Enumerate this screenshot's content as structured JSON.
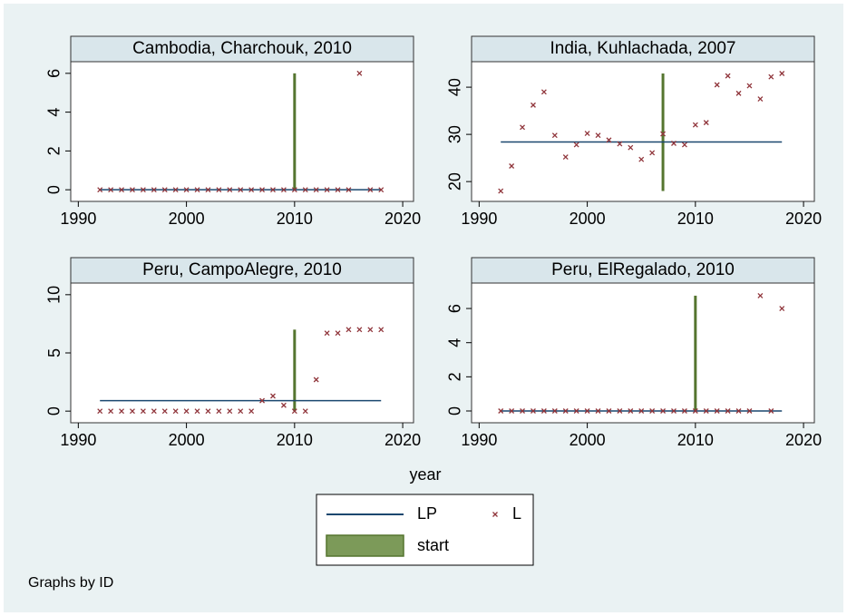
{
  "chart_data": [
    {
      "type": "scatter",
      "title": "Cambodia, Charchouk, 2010",
      "xlim": [
        1989.3,
        2021.0
      ],
      "xticks": [
        1990,
        2000,
        2010,
        2020
      ],
      "ylim": [
        -0.6,
        6.6
      ],
      "yticks": [
        0,
        2,
        4,
        6
      ],
      "x": [
        1992,
        1993,
        1994,
        1995,
        1996,
        1997,
        1998,
        1999,
        2000,
        2001,
        2002,
        2003,
        2004,
        2005,
        2006,
        2007,
        2008,
        2009,
        2010,
        2011,
        2012,
        2013,
        2014,
        2015,
        2016,
        2017,
        2018
      ],
      "lp": [
        0,
        0,
        0,
        0,
        0,
        0,
        0,
        0,
        0,
        0,
        0,
        0,
        0,
        0,
        0,
        0,
        0,
        0,
        0,
        0,
        0,
        0,
        0,
        0,
        0,
        0,
        0
      ],
      "l": [
        0,
        0,
        0,
        0,
        0,
        0,
        0,
        0,
        0,
        0,
        0,
        0,
        0,
        0,
        0,
        0,
        0,
        0,
        0,
        0,
        0,
        0,
        0,
        0,
        6,
        0,
        0
      ],
      "start": {
        "x": 2010,
        "low": 0,
        "high": 6
      }
    },
    {
      "type": "scatter",
      "title": "India, Kuhlachada, 2007",
      "xlim": [
        1989.3,
        2021.0
      ],
      "xticks": [
        1990,
        2000,
        2010,
        2020
      ],
      "ylim": [
        15.8,
        45.4
      ],
      "yticks": [
        20,
        30,
        40
      ],
      "x": [
        1992,
        1993,
        1994,
        1995,
        1996,
        1997,
        1998,
        1999,
        2000,
        2001,
        2002,
        2003,
        2004,
        2005,
        2006,
        2007,
        2008,
        2009,
        2010,
        2011,
        2012,
        2013,
        2014,
        2015,
        2016,
        2017,
        2018
      ],
      "lp": [
        28.4,
        28.4,
        28.4,
        28.4,
        28.4,
        28.4,
        28.4,
        28.4,
        28.4,
        28.4,
        28.4,
        28.4,
        28.4,
        28.4,
        28.4,
        28.4,
        28.4,
        28.4,
        28.4,
        28.4,
        28.4,
        28.4,
        28.4,
        28.4,
        28.4,
        28.4,
        28.4
      ],
      "l": [
        18,
        23.3,
        31.5,
        36.2,
        39,
        29.8,
        25.2,
        27.8,
        30.2,
        29.8,
        28.8,
        28,
        27.2,
        24.7,
        26.1,
        30.1,
        28.1,
        27.8,
        32,
        32.5,
        40.5,
        42.4,
        38.7,
        40.3,
        37.5,
        42.2,
        42.9
      ],
      "start": {
        "x": 2007,
        "low": 18,
        "high": 42.9
      }
    },
    {
      "type": "scatter",
      "title": "Peru, CampoAlegre, 2010",
      "xlim": [
        1989.3,
        2021.0
      ],
      "xticks": [
        1990,
        2000,
        2010,
        2020
      ],
      "ylim": [
        -1.0,
        11.0
      ],
      "yticks": [
        0,
        5,
        10
      ],
      "x": [
        1992,
        1993,
        1994,
        1995,
        1996,
        1997,
        1998,
        1999,
        2000,
        2001,
        2002,
        2003,
        2004,
        2005,
        2006,
        2007,
        2008,
        2009,
        2010,
        2011,
        2012,
        2013,
        2014,
        2015,
        2016,
        2017,
        2018
      ],
      "lp": [
        0.9,
        0.9,
        0.9,
        0.9,
        0.9,
        0.9,
        0.9,
        0.9,
        0.9,
        0.9,
        0.9,
        0.9,
        0.9,
        0.9,
        0.9,
        0.9,
        0.9,
        0.9,
        0.9,
        0.9,
        0.9,
        0.9,
        0.9,
        0.9,
        0.9,
        0.9,
        0.9
      ],
      "l": [
        0,
        0,
        0,
        0,
        0,
        0,
        0,
        0,
        0,
        0,
        0,
        0,
        0,
        0,
        0,
        0.9,
        1.3,
        0.5,
        0,
        0,
        2.7,
        6.7,
        6.7,
        7,
        7,
        7,
        7
      ],
      "start": {
        "x": 2010,
        "low": 0,
        "high": 7
      }
    },
    {
      "type": "scatter",
      "title": "Peru, ElRegalado, 2010",
      "xlim": [
        1989.3,
        2021.0
      ],
      "xticks": [
        1990,
        2000,
        2010,
        2020
      ],
      "ylim": [
        -0.69,
        7.49
      ],
      "yticks": [
        0,
        2,
        4,
        6
      ],
      "x": [
        1992,
        1993,
        1994,
        1995,
        1996,
        1997,
        1998,
        1999,
        2000,
        2001,
        2002,
        2003,
        2004,
        2005,
        2006,
        2007,
        2008,
        2009,
        2010,
        2011,
        2012,
        2013,
        2014,
        2015,
        2016,
        2017,
        2018
      ],
      "lp": [
        0,
        0,
        0,
        0,
        0,
        0,
        0,
        0,
        0,
        0,
        0,
        0,
        0,
        0,
        0,
        0,
        0,
        0,
        0,
        0,
        0,
        0,
        0,
        0,
        0,
        0,
        0
      ],
      "l": [
        0,
        0,
        0,
        0,
        0,
        0,
        0,
        0,
        0,
        0,
        0,
        0,
        0,
        0,
        0,
        0,
        0,
        0,
        0,
        0,
        0,
        0,
        0,
        0,
        6.75,
        0,
        6
      ],
      "start": {
        "x": 2010,
        "low": 0,
        "high": 6.75
      }
    }
  ],
  "xlabel": "year",
  "legend": [
    {
      "name": "LP",
      "color": "#1a476f"
    },
    {
      "name": "L",
      "color": "#90353b"
    },
    {
      "name": "start",
      "color": "#55752f"
    }
  ],
  "note": "Graphs by ID"
}
